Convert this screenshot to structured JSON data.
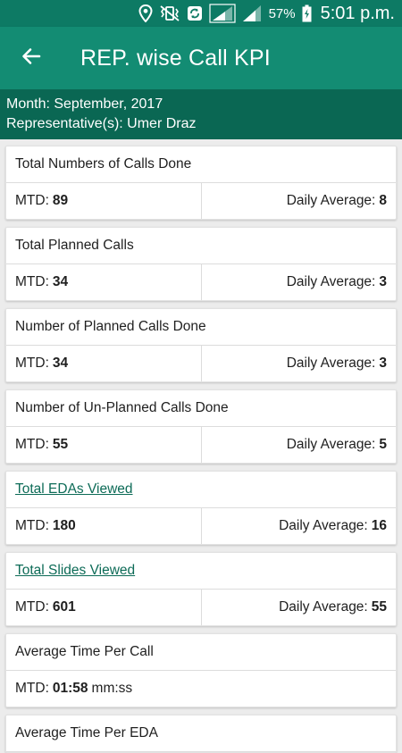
{
  "status_bar": {
    "battery": "57%",
    "time": "5:01 p.m.",
    "icons": [
      "location-icon",
      "vibrate-icon",
      "sync-icon",
      "signal-icon",
      "signal-icon",
      "battery-charging-icon"
    ]
  },
  "app_bar": {
    "title": "REP. wise Call KPI",
    "back_icon": "arrow-left-icon"
  },
  "subheader": {
    "month": "Month: September, 2017",
    "representatives": "Representative(s): Umer Draz"
  },
  "colors": {
    "status_bar": "#0d7a64",
    "app_bar": "#138c73",
    "subheader": "#0a6753",
    "link": "#0d6b57"
  },
  "cards": [
    {
      "title": "Total Numbers of Calls Done",
      "mtd_label": "MTD:",
      "mtd_value": "89",
      "avg_label": "Daily Average:",
      "avg_value": "8"
    },
    {
      "title": "Total Planned Calls",
      "mtd_label": "MTD:",
      "mtd_value": "34",
      "avg_label": "Daily Average:",
      "avg_value": "3"
    },
    {
      "title": "Number of Planned Calls Done",
      "mtd_label": "MTD:",
      "mtd_value": "34",
      "avg_label": "Daily Average:",
      "avg_value": "3"
    },
    {
      "title": "Number of Un-Planned Calls Done",
      "mtd_label": "MTD:",
      "mtd_value": "55",
      "avg_label": "Daily Average:",
      "avg_value": "5"
    },
    {
      "title": "Total EDAs Viewed",
      "mtd_label": "MTD:",
      "mtd_value": "180",
      "avg_label": "Daily Average:",
      "avg_value": "16"
    },
    {
      "title": "Total Slides Viewed",
      "mtd_label": "MTD:",
      "mtd_value": "601",
      "avg_label": "Daily Average:",
      "avg_value": "55"
    },
    {
      "title": "Average Time Per Call",
      "mtd_label": "MTD:",
      "mtd_value": "01:58",
      "mtd_unit": "mm:ss"
    },
    {
      "title": "Average Time Per EDA"
    }
  ]
}
